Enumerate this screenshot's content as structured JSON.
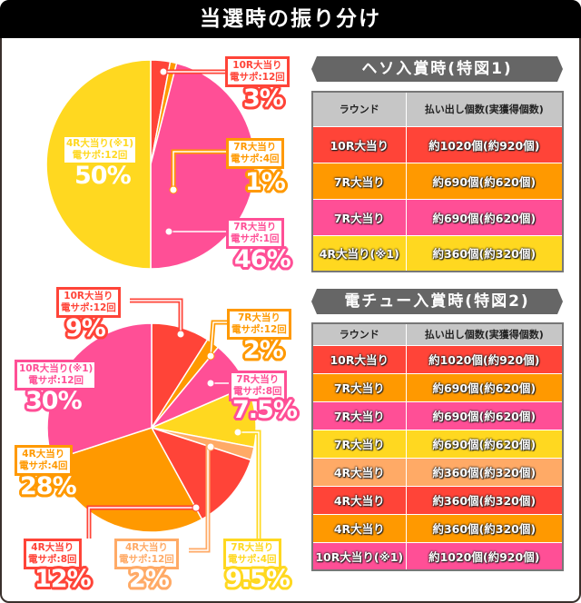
{
  "title": "当選時の振り分け",
  "colors": {
    "red": "#ff4438",
    "orange": "#ff9900",
    "pink": "#ff4f96",
    "yellow": "#ffd820",
    "lightorange": "#ffaa66"
  },
  "chart_data": [
    {
      "type": "pie",
      "slices": [
        {
          "round": "10R大当り",
          "support": "電サポ:12回",
          "value": 3,
          "percent": "3%",
          "color": "red"
        },
        {
          "round": "7R大当り",
          "support": "電サポ:4回",
          "value": 1,
          "percent": "1%",
          "color": "orange"
        },
        {
          "round": "7R大当り",
          "support": "電サポ:1回",
          "value": 46,
          "percent": "46%",
          "color": "pink"
        },
        {
          "round": "4R大当り(※1)",
          "support": "電サポ:12回",
          "value": 50,
          "percent": "50%",
          "color": "yellow"
        }
      ]
    },
    {
      "type": "pie",
      "slices": [
        {
          "round": "10R大当り",
          "support": "電サポ:12回",
          "value": 9,
          "percent": "9%",
          "color": "red"
        },
        {
          "round": "7R大当り",
          "support": "電サポ:12回",
          "value": 2,
          "percent": "2%",
          "color": "orange"
        },
        {
          "round": "7R大当り",
          "support": "電サポ:8回",
          "value": 7.5,
          "percent": "7.5%",
          "color": "pink"
        },
        {
          "round": "7R大当り",
          "support": "電サポ:4回",
          "value": 9.5,
          "percent": "9.5%",
          "color": "yellow"
        },
        {
          "round": "4R大当り",
          "support": "電サポ:12回",
          "value": 2,
          "percent": "2%",
          "color": "lightorange"
        },
        {
          "round": "4R大当り",
          "support": "電サポ:8回",
          "value": 12,
          "percent": "12%",
          "color": "red"
        },
        {
          "round": "4R大当り",
          "support": "電サポ:4回",
          "value": 28,
          "percent": "28%",
          "color": "orange"
        },
        {
          "round": "10R大当り(※1)",
          "support": "電サポ:12回",
          "value": 30,
          "percent": "30%",
          "color": "pink"
        }
      ]
    }
  ],
  "tables": [
    {
      "heading": "ヘソ入賞時(特図1)",
      "headers": [
        "ラウンド",
        "払い出し個数(実獲得個数)"
      ],
      "rows": [
        [
          "10R大当り",
          "約1020個(約920個)",
          "red"
        ],
        [
          "7R大当り",
          "約690個(約620個)",
          "orange"
        ],
        [
          "7R大当り",
          "約690個(約620個)",
          "pink"
        ],
        [
          "4R大当り(※1)",
          "約360個(約320個)",
          "yellow"
        ]
      ]
    },
    {
      "heading": "電チュー入賞時(特図2)",
      "headers": [
        "ラウンド",
        "払い出し個数(実獲得個数)"
      ],
      "rows": [
        [
          "10R大当り",
          "約1020個(約920個)",
          "red"
        ],
        [
          "7R大当り",
          "約690個(約620個)",
          "orange"
        ],
        [
          "7R大当り",
          "約690個(約620個)",
          "pink"
        ],
        [
          "7R大当り",
          "約690個(約620個)",
          "yellow"
        ],
        [
          "4R大当り",
          "約360個(約320個)",
          "lightorange"
        ],
        [
          "4R大当り",
          "約360個(約320個)",
          "red"
        ],
        [
          "4R大当り",
          "約360個(約320個)",
          "orange"
        ],
        [
          "10R大当り(※1)",
          "約1020個(約920個)",
          "pink"
        ]
      ]
    }
  ]
}
